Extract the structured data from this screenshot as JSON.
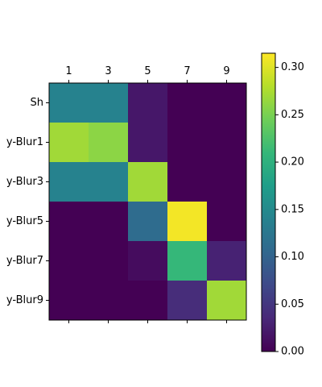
{
  "chart_data": {
    "type": "heatmap",
    "title": "",
    "xlabel": "",
    "ylabel": "",
    "x_tick_labels": [
      "1",
      "3",
      "5",
      "7",
      "9"
    ],
    "y_labels": [
      "Sh",
      "y-Blur1",
      "y-Blur3",
      "y-Blur5",
      "y-Blur7",
      "y-Blur9"
    ],
    "values": [
      [
        0.14,
        0.14,
        0.02,
        0.0,
        0.0
      ],
      [
        0.27,
        0.26,
        0.02,
        0.0,
        0.0
      ],
      [
        0.14,
        0.14,
        0.27,
        0.0,
        0.0
      ],
      [
        0.0,
        0.0,
        0.11,
        0.31,
        0.0
      ],
      [
        0.0,
        0.0,
        0.01,
        0.21,
        0.03
      ],
      [
        0.0,
        0.0,
        0.0,
        0.04,
        0.27
      ]
    ],
    "colormap": "viridis",
    "colorbar": {
      "range": [
        0.0,
        0.315
      ],
      "tick_values": [
        0.0,
        0.05,
        0.1,
        0.15,
        0.2,
        0.25,
        0.3
      ],
      "tick_labels": [
        "0.00",
        "0.05",
        "0.10",
        "0.15",
        "0.20",
        "0.25",
        "0.30"
      ]
    },
    "x_axis_position": "top",
    "grid": false
  }
}
